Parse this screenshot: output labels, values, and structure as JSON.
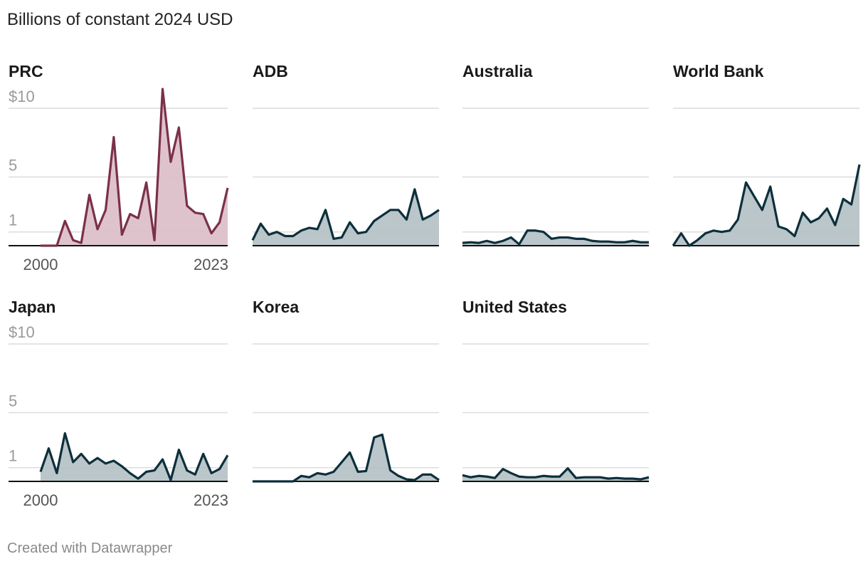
{
  "title": "Billions of constant 2024 USD",
  "credit": "Created with Datawrapper",
  "chart_data": [
    {
      "type": "area",
      "title": "PRC",
      "color": "#7b3049",
      "fill": "#dcbcc6",
      "x": [
        2000,
        2001,
        2002,
        2003,
        2004,
        2005,
        2006,
        2007,
        2008,
        2009,
        2010,
        2011,
        2012,
        2013,
        2014,
        2015,
        2016,
        2017,
        2018,
        2019,
        2020,
        2021,
        2022,
        2023
      ],
      "values": [
        0,
        0,
        0,
        1.8,
        0.4,
        0.2,
        3.7,
        1.2,
        2.6,
        7.9,
        0.8,
        2.3,
        2.0,
        4.6,
        0.4,
        11.4,
        6.1,
        8.6,
        2.9,
        2.4,
        2.3,
        0.9,
        1.7,
        4.2
      ],
      "xlim": [
        2000,
        2023
      ],
      "xticks": [
        2000,
        2023
      ],
      "ylim": [
        0,
        11.5
      ],
      "yticks": [
        1,
        5,
        {
          "value": 10,
          "label": "$10"
        }
      ]
    },
    {
      "type": "area",
      "title": "ADB",
      "color": "#0c2f3b",
      "fill": "#b2c0c4",
      "x": [
        2000,
        2001,
        2002,
        2003,
        2004,
        2005,
        2006,
        2007,
        2008,
        2009,
        2010,
        2011,
        2012,
        2013,
        2014,
        2015,
        2016,
        2017,
        2018,
        2019,
        2020,
        2021,
        2022,
        2023
      ],
      "values": [
        0.4,
        1.6,
        0.8,
        1.0,
        0.7,
        0.7,
        1.1,
        1.3,
        1.2,
        2.6,
        0.5,
        0.6,
        1.7,
        0.9,
        1.0,
        1.8,
        2.2,
        2.6,
        2.6,
        1.9,
        4.1,
        1.9,
        2.2,
        2.6
      ],
      "xlim": [
        2000,
        2023
      ],
      "ylim": [
        0,
        11.5
      ],
      "ygrid": [
        1,
        5,
        10
      ]
    },
    {
      "type": "area",
      "title": "Australia",
      "color": "#0c2f3b",
      "fill": "#b2c0c4",
      "x": [
        2000,
        2001,
        2002,
        2003,
        2004,
        2005,
        2006,
        2007,
        2008,
        2009,
        2010,
        2011,
        2012,
        2013,
        2014,
        2015,
        2016,
        2017,
        2018,
        2019,
        2020,
        2021,
        2022,
        2023
      ],
      "values": [
        0.2,
        0.25,
        0.2,
        0.35,
        0.2,
        0.35,
        0.6,
        0.1,
        1.1,
        1.1,
        1.0,
        0.5,
        0.6,
        0.6,
        0.5,
        0.5,
        0.35,
        0.3,
        0.3,
        0.25,
        0.25,
        0.35,
        0.25,
        0.25
      ],
      "xlim": [
        2000,
        2023
      ],
      "ylim": [
        0,
        11.5
      ],
      "ygrid": [
        1,
        5,
        10
      ]
    },
    {
      "type": "area",
      "title": "World Bank",
      "color": "#0c2f3b",
      "fill": "#b2c0c4",
      "x": [
        2000,
        2001,
        2002,
        2003,
        2004,
        2005,
        2006,
        2007,
        2008,
        2009,
        2010,
        2011,
        2012,
        2013,
        2014,
        2015,
        2016,
        2017,
        2018,
        2019,
        2020,
        2021,
        2022,
        2023
      ],
      "values": [
        0,
        0.9,
        0,
        0.4,
        0.9,
        1.1,
        1.0,
        1.1,
        1.9,
        4.6,
        3.6,
        2.6,
        4.3,
        1.4,
        1.2,
        0.7,
        2.4,
        1.7,
        2.0,
        2.7,
        1.5,
        3.4,
        3.0,
        5.9
      ],
      "xlim": [
        2000,
        2023
      ],
      "ylim": [
        0,
        11.5
      ],
      "ygrid": [
        1,
        5,
        10
      ]
    },
    {
      "type": "area",
      "title": "Japan",
      "color": "#0c2f3b",
      "fill": "#b2c0c4",
      "x": [
        2000,
        2001,
        2002,
        2003,
        2004,
        2005,
        2006,
        2007,
        2008,
        2009,
        2010,
        2011,
        2012,
        2013,
        2014,
        2015,
        2016,
        2017,
        2018,
        2019,
        2020,
        2021,
        2022,
        2023
      ],
      "values": [
        0.7,
        2.4,
        0.6,
        3.5,
        1.4,
        2.0,
        1.3,
        1.7,
        1.3,
        1.5,
        1.1,
        0.6,
        0.2,
        0.7,
        0.8,
        1.6,
        0.1,
        2.3,
        0.8,
        0.5,
        2.0,
        0.6,
        0.9,
        1.9
      ],
      "xlim": [
        2000,
        2023
      ],
      "xticks": [
        2000,
        2023
      ],
      "ylim": [
        0,
        11.5
      ],
      "yticks": [
        1,
        5,
        {
          "value": 10,
          "label": "$10"
        }
      ]
    },
    {
      "type": "area",
      "title": "Korea",
      "color": "#0c2f3b",
      "fill": "#b2c0c4",
      "x": [
        2000,
        2001,
        2002,
        2003,
        2004,
        2005,
        2006,
        2007,
        2008,
        2009,
        2010,
        2011,
        2012,
        2013,
        2014,
        2015,
        2016,
        2017,
        2018,
        2019,
        2020,
        2021,
        2022,
        2023
      ],
      "values": [
        0,
        0,
        0,
        0,
        0,
        0,
        0.4,
        0.3,
        0.6,
        0.5,
        0.7,
        1.4,
        2.1,
        0.7,
        0.75,
        3.2,
        3.4,
        0.8,
        0.4,
        0.15,
        0.1,
        0.5,
        0.5,
        0.1
      ],
      "xlim": [
        2000,
        2023
      ],
      "ylim": [
        0,
        11.5
      ],
      "ygrid": [
        1,
        5,
        10
      ]
    },
    {
      "type": "area",
      "title": "United States",
      "color": "#0c2f3b",
      "fill": "#b2c0c4",
      "x": [
        2000,
        2001,
        2002,
        2003,
        2004,
        2005,
        2006,
        2007,
        2008,
        2009,
        2010,
        2011,
        2012,
        2013,
        2014,
        2015,
        2016,
        2017,
        2018,
        2019,
        2020,
        2021,
        2022,
        2023
      ],
      "values": [
        0.45,
        0.3,
        0.4,
        0.35,
        0.25,
        0.9,
        0.6,
        0.35,
        0.3,
        0.3,
        0.4,
        0.35,
        0.35,
        0.95,
        0.25,
        0.3,
        0.3,
        0.3,
        0.2,
        0.25,
        0.2,
        0.2,
        0.15,
        0.3
      ],
      "xlim": [
        2000,
        2023
      ],
      "ylim": [
        0,
        11.5
      ],
      "ygrid": [
        1,
        5,
        10
      ]
    }
  ]
}
